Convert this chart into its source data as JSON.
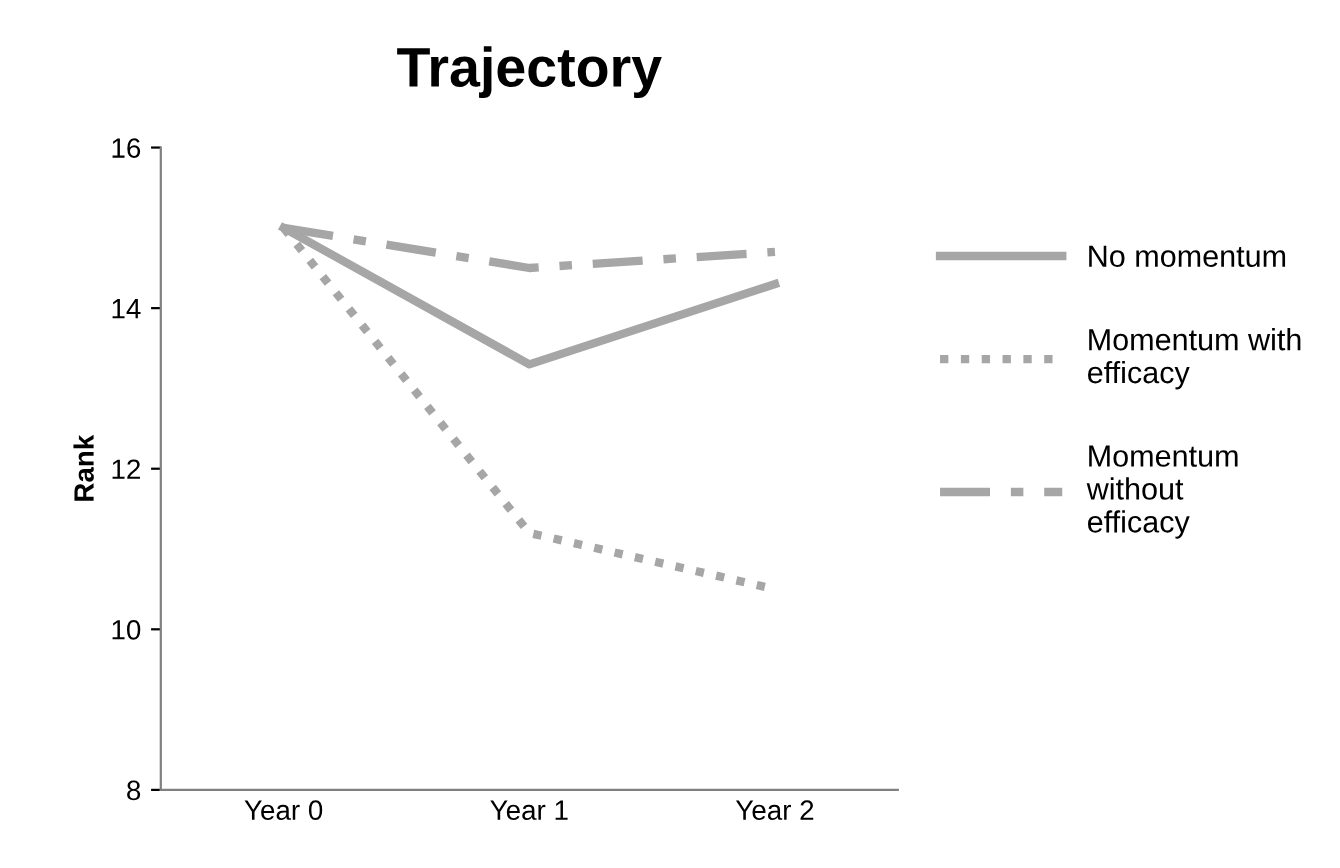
{
  "chart_data": {
    "type": "line",
    "title": "Trajectory",
    "ylabel": "Rank",
    "categories": [
      "Year 0",
      "Year 1",
      "Year 2"
    ],
    "series": [
      {
        "name": "No momentum",
        "color": "#a6a6a6",
        "line_style": "solid",
        "values": [
          15,
          13.3,
          14.3
        ]
      },
      {
        "name": "Momentum with efficacy",
        "color": "#a6a6a6",
        "line_style": "dotted",
        "values": [
          15,
          11.2,
          10.5
        ]
      },
      {
        "name": "Momentum without efficacy",
        "color": "#a6a6a6",
        "line_style": "dashed",
        "values": [
          15,
          14.5,
          14.7
        ]
      }
    ],
    "ylim": [
      8,
      16
    ],
    "yticks": [
      8,
      10,
      12,
      14,
      16
    ],
    "grid": false,
    "legend": "right",
    "marker": "none"
  }
}
